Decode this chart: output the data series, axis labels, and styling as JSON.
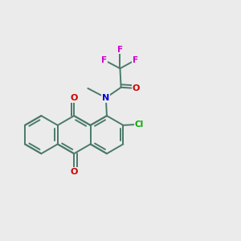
{
  "bg_color": "#ebebeb",
  "atom_colors": {
    "C": "#4a7a6a",
    "N": "#0000cc",
    "O": "#cc0000",
    "F": "#cc00cc",
    "Cl": "#00aa00"
  },
  "bond_color": "#4a7a6a",
  "bond_width": 1.4,
  "dbo": 0.012,
  "figsize": [
    3.0,
    3.0
  ],
  "dpi": 100
}
